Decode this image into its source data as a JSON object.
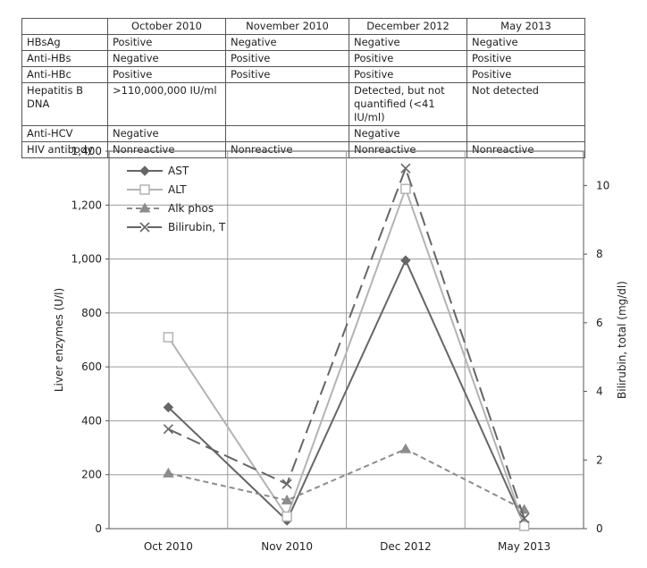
{
  "table": {
    "columns": [
      "",
      "October 2010",
      "November 2010",
      "December 2012",
      "May 2013"
    ],
    "rows": [
      [
        "HBsAg",
        "Positive",
        "Negative",
        "Negative",
        "Negative"
      ],
      [
        "Anti-HBs",
        "Negative",
        "Positive",
        "Positive",
        "Positive"
      ],
      [
        "Anti-HBc",
        "Positive",
        "Positive",
        "Positive",
        "Positive"
      ],
      [
        "Hepatitis B\nDNA",
        ">110,000,000 IU/ml",
        "",
        "Detected, but not\nquantified (<41 IU/ml)",
        "Not detected"
      ],
      [
        "Anti-HCV",
        "Negative",
        "",
        "Negative",
        ""
      ],
      [
        "HIV antibody",
        "Nonreactive",
        "Nonreactive",
        "Nonreactive",
        "Nonreactive"
      ]
    ]
  },
  "chart_data": {
    "type": "line",
    "categories": [
      "Oct 2010",
      "Nov 2010",
      "Dec 2012",
      "May 2013"
    ],
    "ylabel": "Liver enzymes (U/l)",
    "y2label": "Bilirubin, total (mg/dl)",
    "ylim": [
      0,
      1400
    ],
    "y2lim": [
      0,
      11
    ],
    "yticks": [
      "0",
      "200",
      "400",
      "600",
      "800",
      "1,000",
      "1,200",
      "1,400"
    ],
    "y2ticks": [
      "0",
      "2",
      "4",
      "6",
      "8",
      "10"
    ],
    "grid": true,
    "legend_position": "top-left",
    "series": [
      {
        "name": "AST",
        "axis": "left",
        "values": [
          450,
          30,
          995,
          15
        ],
        "color": "#666666",
        "marker": "diamond",
        "dash": "solid"
      },
      {
        "name": "ALT",
        "axis": "left",
        "values": [
          710,
          45,
          1260,
          10
        ],
        "color": "#b3b3b3",
        "marker": "square-open",
        "dash": "solid"
      },
      {
        "name": "Alk phos",
        "axis": "left",
        "values": [
          205,
          105,
          295,
          70
        ],
        "color": "#8c8c8c",
        "marker": "triangle",
        "dash": "dashed"
      },
      {
        "name": "Bilirubin, T",
        "axis": "right",
        "values": [
          2.9,
          1.3,
          10.5,
          0.3
        ],
        "color": "#666666",
        "marker": "x",
        "dash": "longdash"
      }
    ]
  }
}
